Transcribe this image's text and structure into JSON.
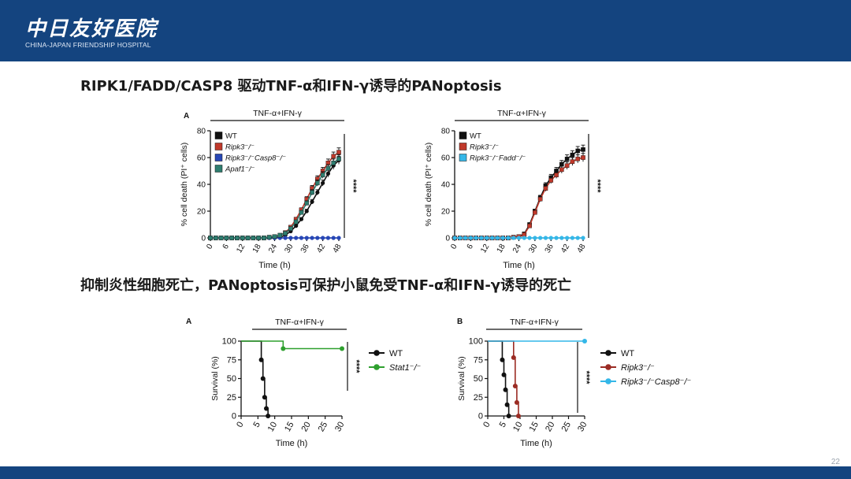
{
  "header": {
    "logo_cn": "中日友好医院",
    "logo_en": "CHINA-JAPAN FRIENDSHIP HOSPITAL",
    "bg_color": "#14447f"
  },
  "slide": {
    "heading_1": "RIPK1/FADD/CASP8 驱动TNF-α和IFN-γ诱导的PANoptosis",
    "heading_2": "抑制炎性细胞死亡，PANoptosis可保护小鼠免受TNF-α和IFN-γ诱导的死亡",
    "page_number": "22"
  },
  "chart_data": [
    {
      "type": "line",
      "panel": "A",
      "treatment": "TNF-α+IFN-γ",
      "xlabel": "Time (h)",
      "ylabel": "% cell death (PI⁺ cells)",
      "xlim": [
        0,
        48
      ],
      "ylim": [
        0,
        80
      ],
      "xticks": [
        0,
        6,
        12,
        18,
        24,
        30,
        36,
        42,
        48
      ],
      "yticks": [
        0,
        20,
        40,
        60,
        80
      ],
      "significance": "****",
      "legend_position": "top-left",
      "x": [
        0,
        2,
        4,
        6,
        8,
        10,
        12,
        14,
        16,
        18,
        20,
        22,
        24,
        26,
        28,
        30,
        32,
        34,
        36,
        38,
        40,
        42,
        44,
        46,
        48
      ],
      "series": [
        {
          "name": "WT",
          "color": "#111111",
          "marker": "circle",
          "values": [
            0,
            0,
            0,
            0,
            0,
            0,
            0,
            0,
            0,
            0,
            0,
            0,
            0,
            0.5,
            2,
            5,
            9,
            14,
            20,
            27,
            34,
            41,
            48,
            54,
            58
          ]
        },
        {
          "name": "Ripk3⁻/⁻",
          "color": "#c0392b",
          "marker": "square",
          "values": [
            0,
            0,
            0,
            0,
            0,
            0,
            0,
            0,
            0,
            0,
            0,
            0.5,
            1,
            2,
            4,
            8,
            14,
            21,
            29,
            37,
            44,
            50,
            56,
            61,
            64
          ]
        },
        {
          "name": "Ripk3⁻/⁻Casp8⁻/⁻",
          "color": "#2747b6",
          "marker": "circle",
          "values": [
            0,
            0,
            0,
            0,
            0,
            0,
            0,
            0,
            0,
            0,
            0,
            0,
            0,
            0,
            0,
            0,
            0,
            0,
            0,
            0,
            0,
            0,
            0,
            0,
            0
          ]
        },
        {
          "name": "Apaf1⁻/⁻",
          "color": "#2e7d6f",
          "marker": "square",
          "values": [
            0,
            0,
            0,
            0,
            0,
            0,
            0,
            0,
            0,
            0,
            0,
            0.5,
            1,
            2,
            3.5,
            7,
            12,
            19,
            26,
            34,
            41,
            47,
            52,
            56,
            59
          ]
        }
      ]
    },
    {
      "type": "line",
      "panel": "",
      "treatment": "TNF-α+IFN-γ",
      "xlabel": "Time (h)",
      "ylabel": "% cell death (PI⁺ cells)",
      "xlim": [
        0,
        48
      ],
      "ylim": [
        0,
        80
      ],
      "xticks": [
        0,
        6,
        12,
        18,
        24,
        30,
        36,
        42,
        48
      ],
      "yticks": [
        0,
        20,
        40,
        60,
        80
      ],
      "significance": "****",
      "legend_position": "top-left",
      "x": [
        0,
        2,
        4,
        6,
        8,
        10,
        12,
        14,
        16,
        18,
        20,
        22,
        24,
        26,
        28,
        30,
        32,
        34,
        36,
        38,
        40,
        42,
        44,
        46,
        48
      ],
      "series": [
        {
          "name": "WT",
          "color": "#111111",
          "marker": "square",
          "values": [
            0,
            0,
            0,
            0,
            0,
            0,
            0,
            0,
            0,
            0,
            0,
            0.5,
            1,
            3,
            10,
            20,
            30,
            39,
            45,
            50,
            55,
            59,
            62,
            65,
            66
          ]
        },
        {
          "name": "Ripk3⁻/⁻",
          "color": "#c0392b",
          "marker": "square",
          "values": [
            0,
            0,
            0,
            0,
            0,
            0,
            0,
            0,
            0,
            0,
            0,
            0.5,
            1,
            2.5,
            9,
            19,
            29,
            37,
            43,
            47,
            51,
            54,
            57,
            59,
            60
          ]
        },
        {
          "name": "Ripk3⁻/⁻Fadd⁻/⁻",
          "color": "#34b7e8",
          "marker": "circle",
          "values": [
            0,
            0,
            0,
            0,
            0,
            0,
            0,
            0,
            0,
            0,
            0,
            0,
            0,
            0,
            0,
            0,
            0,
            0,
            0,
            0,
            0,
            0,
            0,
            0,
            0
          ]
        }
      ]
    },
    {
      "type": "line",
      "step": true,
      "panel": "A",
      "treatment": "TNF-α+IFN-γ",
      "xlabel": "Time (h)",
      "ylabel": "Survival (%)",
      "xlim": [
        0,
        30
      ],
      "ylim": [
        0,
        100
      ],
      "xticks": [
        0,
        5,
        10,
        15,
        20,
        25,
        30
      ],
      "yticks": [
        0,
        25,
        50,
        75,
        100
      ],
      "significance": "****",
      "legend_position": "right",
      "series": [
        {
          "name": "WT",
          "color": "#111111",
          "points": [
            [
              0,
              100
            ],
            [
              6,
              75
            ],
            [
              6.5,
              50
            ],
            [
              7,
              25
            ],
            [
              7.5,
              10
            ],
            [
              8,
              0
            ]
          ]
        },
        {
          "name": "Stat1⁻/⁻",
          "color": "#2ea02e",
          "points": [
            [
              0,
              100
            ],
            [
              12.5,
              90
            ],
            [
              30,
              90
            ]
          ]
        }
      ]
    },
    {
      "type": "line",
      "step": true,
      "panel": "B",
      "treatment": "TNF-α+IFN-γ",
      "xlabel": "Time (h)",
      "ylabel": "Survival (%)",
      "xlim": [
        0,
        30
      ],
      "ylim": [
        0,
        100
      ],
      "xticks": [
        0,
        5,
        10,
        15,
        20,
        25,
        30
      ],
      "yticks": [
        0,
        25,
        50,
        75,
        100
      ],
      "significance": "****",
      "legend_position": "right",
      "series": [
        {
          "name": "WT",
          "color": "#111111",
          "points": [
            [
              0,
              100
            ],
            [
              4.5,
              75
            ],
            [
              5,
              55
            ],
            [
              5.5,
              35
            ],
            [
              6,
              15
            ],
            [
              6.5,
              0
            ]
          ]
        },
        {
          "name": "Ripk3⁻/⁻",
          "color": "#9b2c24",
          "points": [
            [
              0,
              100
            ],
            [
              8,
              78
            ],
            [
              8.5,
              40
            ],
            [
              9,
              18
            ],
            [
              9.5,
              0
            ]
          ]
        },
        {
          "name": "Ripk3⁻/⁻Casp8⁻/⁻",
          "color": "#34b7e8",
          "points": [
            [
              0,
              100
            ],
            [
              30,
              100
            ]
          ]
        }
      ]
    }
  ]
}
